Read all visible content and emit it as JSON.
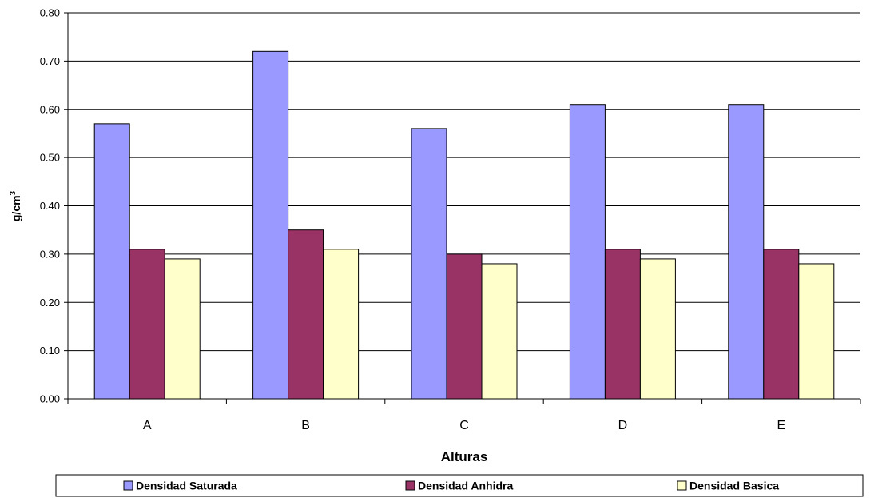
{
  "chart_data": {
    "type": "bar",
    "title": "",
    "categories": [
      "A",
      "B",
      "C",
      "D",
      "E"
    ],
    "series": [
      {
        "name": "Densidad Saturada",
        "values": [
          0.57,
          0.72,
          0.56,
          0.61,
          0.61
        ],
        "color": "#9999FF"
      },
      {
        "name": "Densidad Anhidra",
        "values": [
          0.31,
          0.35,
          0.3,
          0.31,
          0.31
        ],
        "color": "#993366"
      },
      {
        "name": "Densidad Basica",
        "values": [
          0.29,
          0.31,
          0.28,
          0.29,
          0.28
        ],
        "color": "#FFFFCC"
      }
    ],
    "xlabel": "Alturas",
    "ylabel": {
      "base": "g/cm",
      "sup": "3"
    },
    "ylim": [
      0,
      0.8
    ],
    "yticks": [
      "0.00",
      "0.10",
      "0.20",
      "0.30",
      "0.40",
      "0.50",
      "0.60",
      "0.70",
      "0.80"
    ],
    "grid": true,
    "legend_position": "bottom"
  }
}
